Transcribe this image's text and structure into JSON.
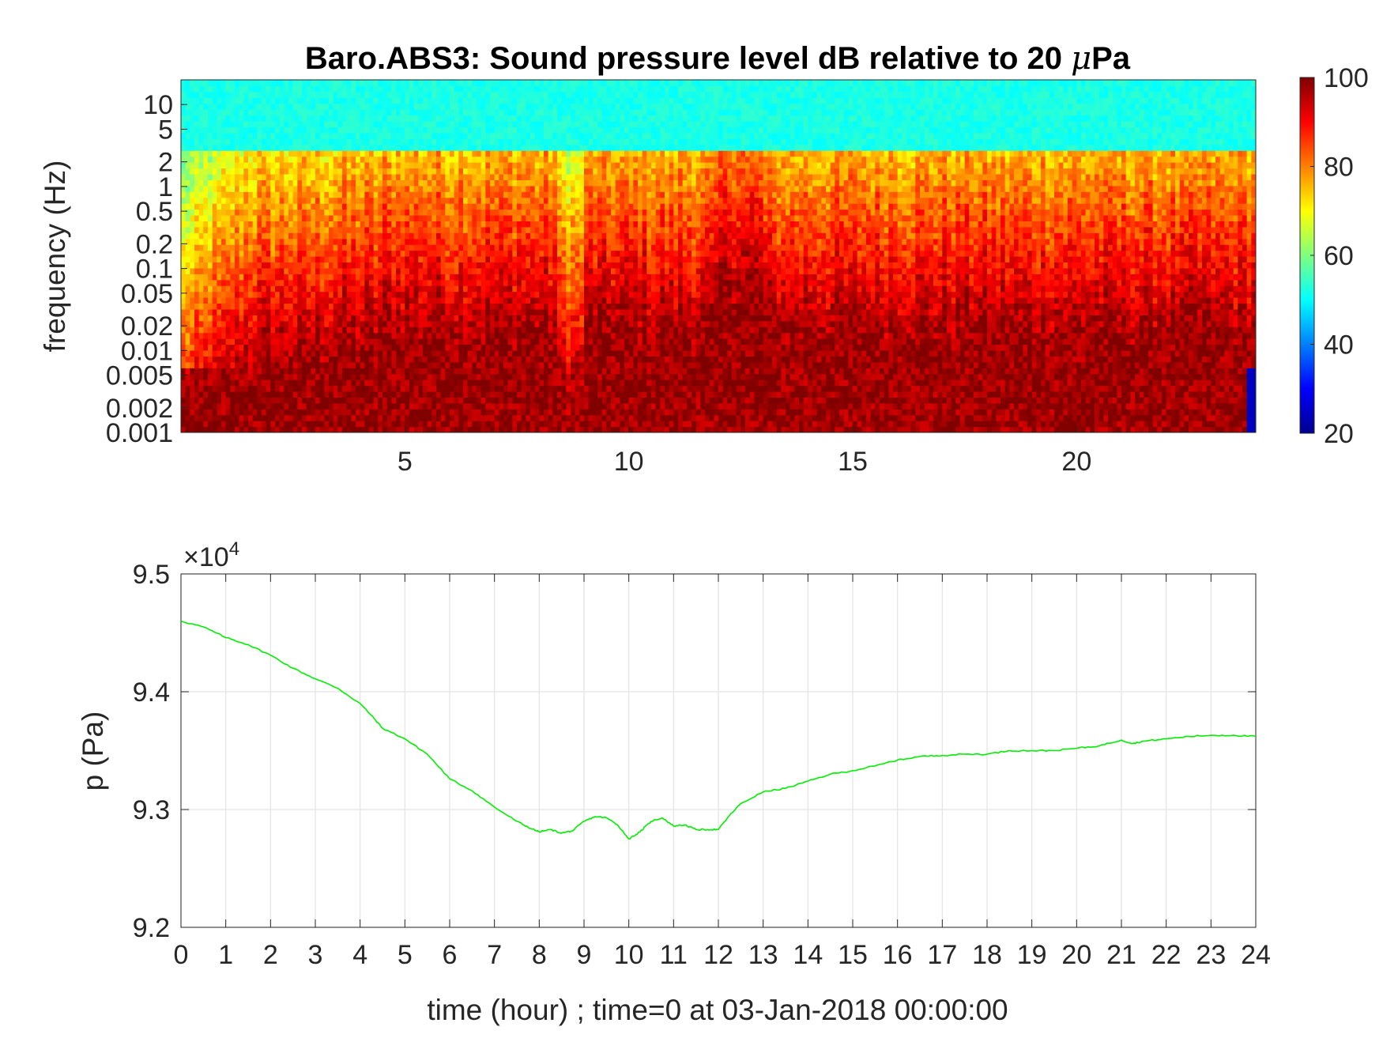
{
  "chart_data": [
    {
      "type": "heatmap",
      "title": "Baro.ABS3: Sound pressure level dB relative to 20 μPa",
      "title_prefix": "Baro.ABS3: Sound pressure level dB relative to 20 ",
      "title_unit_greek": "μ",
      "title_unit_suffix": "Pa",
      "ylabel": "frequency (Hz)",
      "xlabel": "",
      "y_scale": "log",
      "xlim": [
        0,
        24
      ],
      "ylim": [
        0.001,
        20
      ],
      "x_ticks": [
        {
          "value": 5,
          "label": "5"
        },
        {
          "value": 10,
          "label": "10"
        },
        {
          "value": 15,
          "label": "15"
        },
        {
          "value": 20,
          "label": "20"
        }
      ],
      "y_ticks": [
        {
          "value": 10,
          "label": "10"
        },
        {
          "value": 5,
          "label": "5"
        },
        {
          "value": 2,
          "label": "2"
        },
        {
          "value": 1,
          "label": "1"
        },
        {
          "value": 0.5,
          "label": "0.5"
        },
        {
          "value": 0.2,
          "label": "0.2"
        },
        {
          "value": 0.1,
          "label": "0.1"
        },
        {
          "value": 0.05,
          "label": "0.05"
        },
        {
          "value": 0.02,
          "label": "0.02"
        },
        {
          "value": 0.01,
          "label": "0.01"
        },
        {
          "value": 0.005,
          "label": "0.005"
        },
        {
          "value": 0.002,
          "label": "0.002"
        },
        {
          "value": 0.001,
          "label": "0.001"
        }
      ],
      "colormap": "jet",
      "colorbar": {
        "range": [
          20,
          100
        ],
        "ticks": [
          {
            "value": 20,
            "label": "20"
          },
          {
            "value": 40,
            "label": "40"
          },
          {
            "value": 60,
            "label": "60"
          },
          {
            "value": 80,
            "label": "80"
          },
          {
            "value": 100,
            "label": "100"
          }
        ]
      },
      "grid": false
    },
    {
      "type": "line",
      "xlabel": "time (hour) ; time=0 at 03-Jan-2018 00:00:00",
      "ylabel": "p (Pa)",
      "exponent_base": "10",
      "exponent_power": "4",
      "xlim": [
        0,
        24
      ],
      "ylim": [
        9.2,
        9.5
      ],
      "x_ticks": [
        {
          "value": 0,
          "label": "0"
        },
        {
          "value": 1,
          "label": "1"
        },
        {
          "value": 2,
          "label": "2"
        },
        {
          "value": 3,
          "label": "3"
        },
        {
          "value": 4,
          "label": "4"
        },
        {
          "value": 5,
          "label": "5"
        },
        {
          "value": 6,
          "label": "6"
        },
        {
          "value": 7,
          "label": "7"
        },
        {
          "value": 8,
          "label": "8"
        },
        {
          "value": 9,
          "label": "9"
        },
        {
          "value": 10,
          "label": "10"
        },
        {
          "value": 11,
          "label": "11"
        },
        {
          "value": 12,
          "label": "12"
        },
        {
          "value": 13,
          "label": "13"
        },
        {
          "value": 14,
          "label": "14"
        },
        {
          "value": 15,
          "label": "15"
        },
        {
          "value": 16,
          "label": "16"
        },
        {
          "value": 17,
          "label": "17"
        },
        {
          "value": 18,
          "label": "18"
        },
        {
          "value": 19,
          "label": "19"
        },
        {
          "value": 20,
          "label": "20"
        },
        {
          "value": 21,
          "label": "21"
        },
        {
          "value": 22,
          "label": "22"
        },
        {
          "value": 23,
          "label": "23"
        },
        {
          "value": 24,
          "label": "24"
        }
      ],
      "y_ticks": [
        {
          "value": 9.2,
          "label": "9.2"
        },
        {
          "value": 9.3,
          "label": "9.3"
        },
        {
          "value": 9.4,
          "label": "9.4"
        },
        {
          "value": 9.5,
          "label": "9.5"
        }
      ],
      "grid": true,
      "line_color": "#00ee00",
      "series": [
        {
          "x": [
            0,
            0.5,
            1,
            1.5,
            2,
            2.5,
            3,
            3.5,
            4,
            4.25,
            4.5,
            5,
            5.5,
            6,
            6.5,
            7,
            7.5,
            7.75,
            8,
            8.25,
            8.5,
            8.75,
            9,
            9.25,
            9.5,
            9.75,
            10,
            10.25,
            10.5,
            10.75,
            11,
            11.25,
            11.5,
            11.75,
            12,
            12.25,
            12.5,
            13,
            13.5,
            14,
            14.5,
            15,
            15.5,
            16,
            16.5,
            17,
            17.5,
            18,
            18.5,
            19,
            19.5,
            20,
            20.5,
            21,
            21.25,
            21.5,
            22,
            22.5,
            23,
            23.5,
            24
          ],
          "y": [
            9.46,
            9.455,
            9.446,
            9.44,
            9.431,
            9.42,
            9.411,
            9.403,
            9.39,
            9.38,
            9.369,
            9.36,
            9.347,
            9.326,
            9.316,
            9.302,
            9.29,
            9.285,
            9.281,
            9.283,
            9.28,
            9.282,
            9.29,
            9.294,
            9.293,
            9.287,
            9.275,
            9.281,
            9.29,
            9.293,
            9.286,
            9.287,
            9.283,
            9.283,
            9.283,
            9.295,
            9.305,
            9.315,
            9.318,
            9.324,
            9.33,
            9.333,
            9.337,
            9.342,
            9.345,
            9.346,
            9.347,
            9.347,
            9.35,
            9.35,
            9.35,
            9.352,
            9.354,
            9.359,
            9.356,
            9.358,
            9.36,
            9.362,
            9.363,
            9.363,
            9.362
          ]
        }
      ]
    }
  ]
}
